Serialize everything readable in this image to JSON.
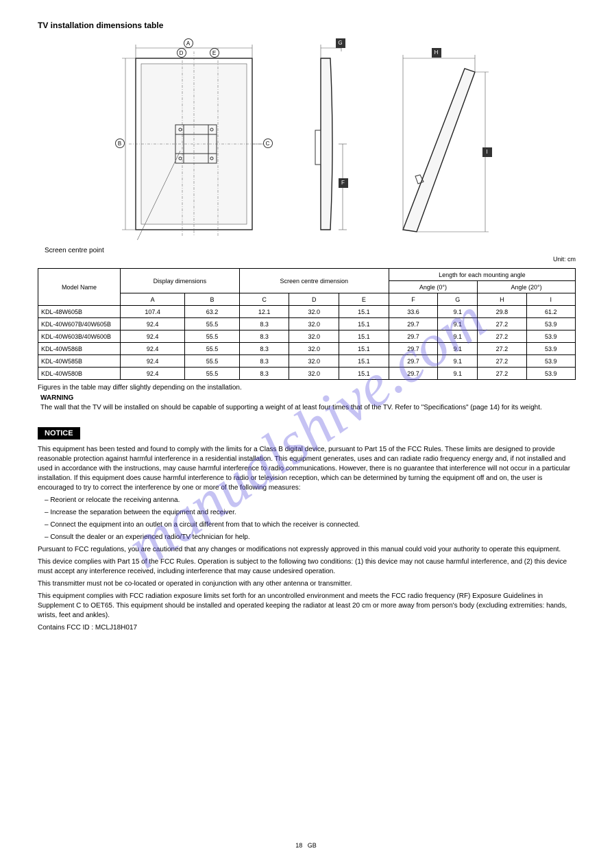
{
  "heading": "TV installation dimensions table",
  "screen_center_label": "Screen centre point",
  "diagram_markers": {
    "A": "A",
    "B": "B",
    "C": "C",
    "D": "D",
    "E": "E",
    "F": "F",
    "G": "G",
    "H": "H",
    "I": "I"
  },
  "table": {
    "unit_note": "Unit: cm",
    "headers": {
      "model": "Model Name",
      "display": "Display dimensions",
      "screen_centre": "Screen centre dimension",
      "wall_length": "Length for each mounting angle",
      "angle0": "Angle (0°)",
      "angle20": "Angle (20°)",
      "A": "A",
      "B": "B",
      "C": "C",
      "D": "D",
      "E": "E",
      "F": "F",
      "G": "G",
      "H": "H",
      "I": "I"
    },
    "rows": [
      {
        "model": "KDL-48W605B",
        "A": "107.4",
        "B": "63.2",
        "C": "12.1",
        "D": "32.0",
        "E": "15.1",
        "F": "33.6",
        "G": "9.1",
        "H": "29.8",
        "I": "61.2"
      },
      {
        "model": "KDL-40W607B/40W605B",
        "A": "92.4",
        "B": "55.5",
        "C": "8.3",
        "D": "32.0",
        "E": "15.1",
        "F": "29.7",
        "G": "9.1",
        "H": "27.2",
        "I": "53.9"
      },
      {
        "model": "KDL-40W603B/40W600B",
        "A": "92.4",
        "B": "55.5",
        "C": "8.3",
        "D": "32.0",
        "E": "15.1",
        "F": "29.7",
        "G": "9.1",
        "H": "27.2",
        "I": "53.9"
      },
      {
        "model": "KDL-40W586B",
        "A": "92.4",
        "B": "55.5",
        "C": "8.3",
        "D": "32.0",
        "E": "15.1",
        "F": "29.7",
        "G": "9.1",
        "H": "27.2",
        "I": "53.9"
      },
      {
        "model": "KDL-40W585B",
        "A": "92.4",
        "B": "55.5",
        "C": "8.3",
        "D": "32.0",
        "E": "15.1",
        "F": "29.7",
        "G": "9.1",
        "H": "27.2",
        "I": "53.9"
      },
      {
        "model": "KDL-40W580B",
        "A": "92.4",
        "B": "55.5",
        "C": "8.3",
        "D": "32.0",
        "E": "15.1",
        "F": "29.7",
        "G": "9.1",
        "H": "27.2",
        "I": "53.9"
      }
    ]
  },
  "table_footnote": "Figures in the table may differ slightly depending on the installation.",
  "warning_heading": "WARNING",
  "warning_text": "The wall that the TV will be installed on should be capable of supporting a weight of at least four times that of the TV. Refer to \"Specifications\" (page 14) for its weight.",
  "notice_label": "NOTICE",
  "notice": {
    "line1": "This equipment has been tested and found to comply with the limits for a Class B digital device, pursuant to Part 15 of the FCC Rules. These limits are designed to provide reasonable protection against harmful interference in a residential installation. This equipment generates, uses and can radiate radio frequency energy and, if not installed and used in accordance with the instructions, may cause harmful interference to radio communications. However, there is no guarantee that interference will not occur in a particular installation. If this equipment does cause harmful interference to radio or television reception, which can be determined by turning the equipment off and on, the user is encouraged to try to correct the interference by one or more of the following measures:",
    "bullets": [
      "Reorient or relocate the receiving antenna.",
      "Increase the separation between the equipment and receiver.",
      "Connect the equipment into an outlet on a circuit different from that to which the receiver is connected.",
      "Consult the dealer or an experienced radio/TV technician for help."
    ],
    "line2": "Pursuant to FCC regulations, you are cautioned that any changes or modifications not expressly approved in this manual could void your authority to operate this equipment.",
    "line3": "This device complies with Part 15 of the FCC Rules. Operation is subject to the following two conditions: (1) this device may not cause harmful interference, and (2) this device must accept any interference received, including interference that may cause undesired operation.",
    "line4": "This transmitter must not be co-located or operated in conjunction with any other antenna or transmitter.",
    "line5": "This equipment complies with FCC radiation exposure limits set forth for an uncontrolled environment and meets the FCC radio frequency (RF) Exposure Guidelines in Supplement C to OET65. This equipment should be installed and operated keeping the radiator at least 20 cm or more away from person's body (excluding extremities: hands, wrists, feet and ankles).",
    "line6": "Contains FCC ID : MCLJ18H017"
  },
  "footer": {
    "page": "18",
    "lang": "GB"
  },
  "watermark": "manualshive.com"
}
